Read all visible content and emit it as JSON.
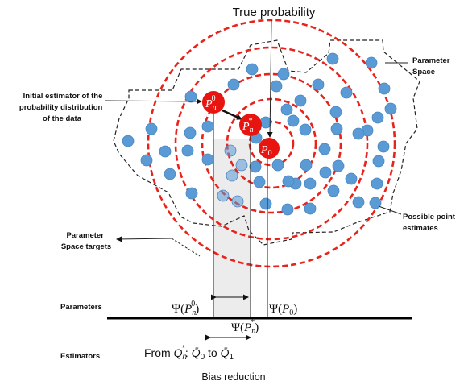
{
  "title": "True probability",
  "labels": {
    "parameter_space": [
      "Parameter",
      "Space"
    ],
    "initial_estimator": [
      "Initial estimator of the",
      "probability distribution",
      "of the data"
    ],
    "possible_estimates": [
      "Possible point",
      "estimates"
    ],
    "space_targets": [
      "Parameter",
      "Space targets"
    ],
    "parameters": "Parameters",
    "estimators": "Estimators",
    "caption": "Bias reduction"
  },
  "nodes": {
    "pn0": {
      "base": "P",
      "sub": "n",
      "sup": "0"
    },
    "pnstar": {
      "base": "P",
      "sub": "n",
      "sup": "*"
    },
    "p0": {
      "base": "P",
      "sub": "0"
    }
  },
  "axis_labels": {
    "psi_pn0": {
      "prefix": "Ψ(",
      "base": "P",
      "sub": "n",
      "sup": "0",
      "suffix": ")"
    },
    "psi_p0": {
      "prefix": "Ψ(",
      "base": "P",
      "sub": "0",
      "suffix": ")"
    },
    "psi_pnstar": {
      "prefix": "Ψ(",
      "base": "P",
      "sub": "n",
      "sup": "*",
      "suffix": ")"
    }
  },
  "estimators_line": {
    "from": "From ",
    "q_base": "Q",
    "q_sub": "n",
    "q_sup": "*",
    "colon": ": ",
    "q0_base": "Q̄",
    "q0_sub": "0",
    "to": " to ",
    "q1_base": "Q̄",
    "q1_sub": "1"
  },
  "colors": {
    "ring": "#e8231b",
    "dot": "#5b9bd5",
    "node_fill": "#e8140f",
    "shade": "#ececec",
    "boundary": "#222222"
  }
}
